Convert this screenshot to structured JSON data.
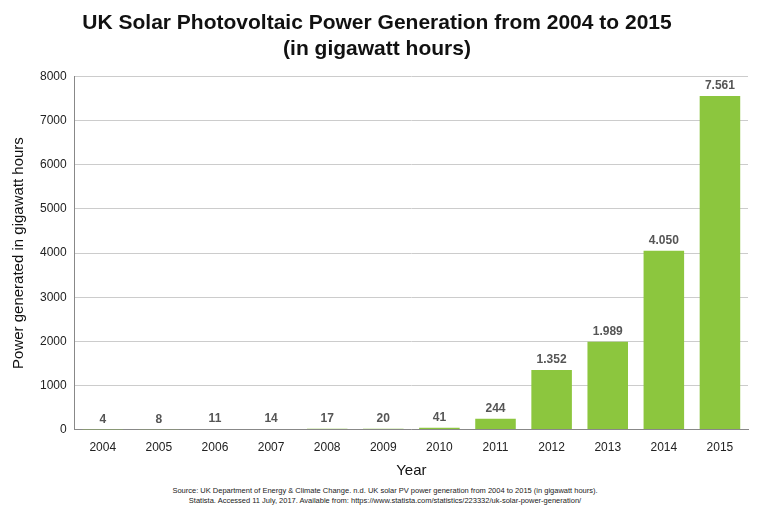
{
  "chart_data": {
    "type": "bar",
    "title": [
      "UK Solar Photovoltaic Power Generation from 2004 to 2015",
      "(in gigawatt hours)"
    ],
    "x_label": "Year",
    "y_label": "Power generated in gigawatt hours",
    "categories": [
      "2004",
      "2005",
      "2006",
      "2007",
      "2008",
      "2009",
      "2010",
      "2011",
      "2012",
      "2013",
      "2014",
      "2015"
    ],
    "values": [
      4,
      8,
      11,
      14,
      17,
      20,
      41,
      244,
      1352,
      1989,
      4050,
      7561
    ],
    "value_labels": [
      "4",
      "8",
      "11",
      "14",
      "17",
      "20",
      "41",
      "244",
      "1.352",
      "1.989",
      "4.050",
      "7.561"
    ],
    "color": "#8cc63e",
    "ylim": [
      0,
      8000
    ],
    "yticks": [
      0,
      1000,
      2000,
      3000,
      4000,
      5000,
      6000,
      7000,
      8000
    ],
    "grid": true,
    "data_labels": true,
    "source": [
      "Source: UK Department of Energy & Climate Change. n.d. UK solar PV power generation from 2004 to 2015 (in gigawatt hours).",
      "Statista. Accessed 11 July, 2017. Available from: https://www.statista.com/statistics/223332/uk-solar-power-generation/"
    ]
  }
}
